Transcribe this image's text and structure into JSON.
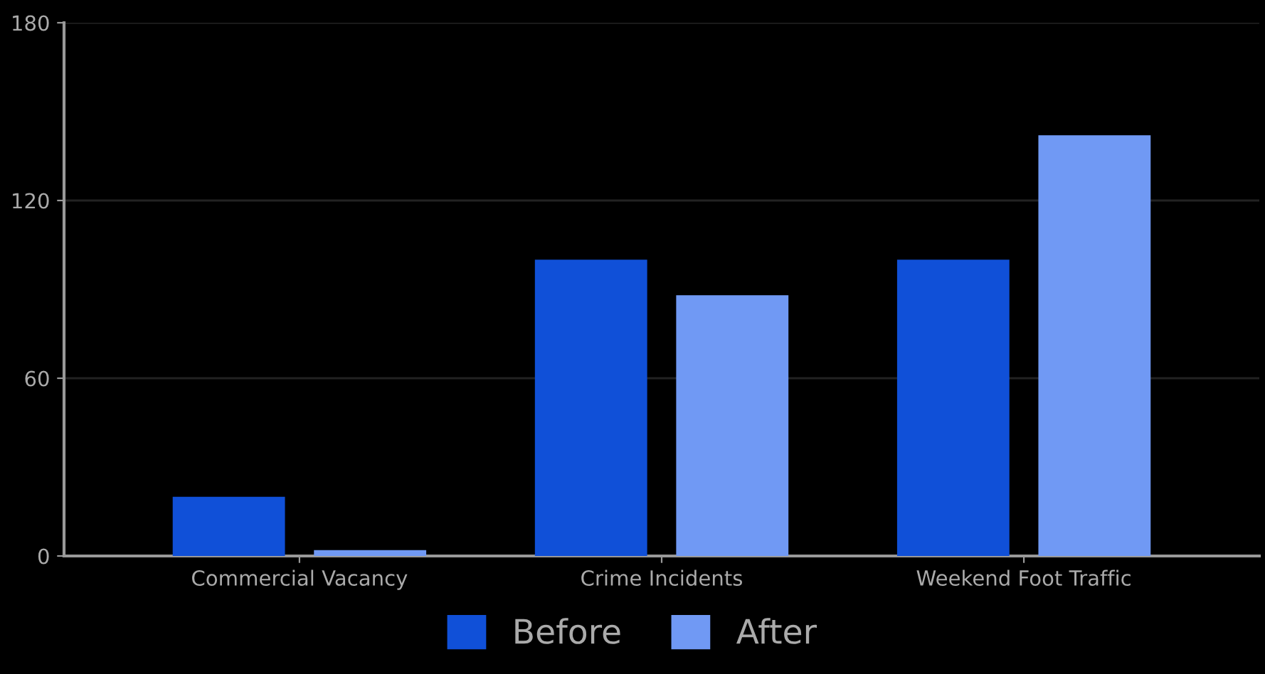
{
  "chart_data": {
    "type": "bar",
    "categories": [
      "Commercial Vacancy",
      "Crime Incidents",
      "Weekend Foot Traffic"
    ],
    "series": [
      {
        "name": "Before",
        "color": "#1050d8",
        "values": [
          20,
          100,
          100
        ]
      },
      {
        "name": "After",
        "color": "#7099f4",
        "values": [
          2,
          88,
          142
        ]
      }
    ],
    "ylim": [
      0,
      180
    ],
    "yticks": [
      0,
      60,
      120,
      180
    ],
    "grid": "y",
    "legend": "bottom"
  }
}
